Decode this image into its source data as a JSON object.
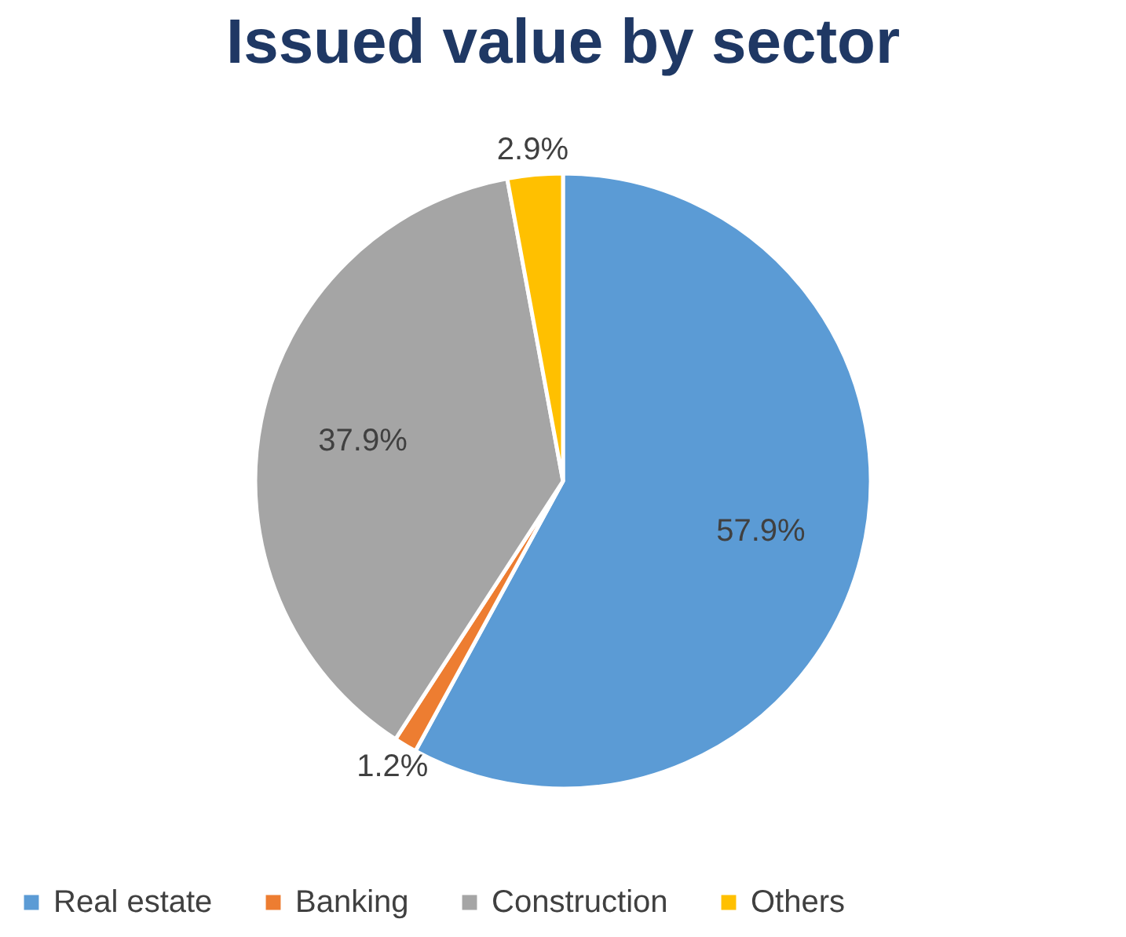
{
  "chart_data": {
    "type": "pie",
    "title": "Issued value by sector",
    "categories": [
      "Real estate",
      "Banking",
      "Construction",
      "Others"
    ],
    "values": [
      57.9,
      1.2,
      37.9,
      2.9
    ],
    "colors": [
      "#5b9bd5",
      "#ed7d31",
      "#a5a5a5",
      "#ffc000"
    ],
    "value_labels": [
      "57.9%",
      "1.2%",
      "37.9%",
      "2.9%"
    ],
    "legend": "bottom"
  }
}
